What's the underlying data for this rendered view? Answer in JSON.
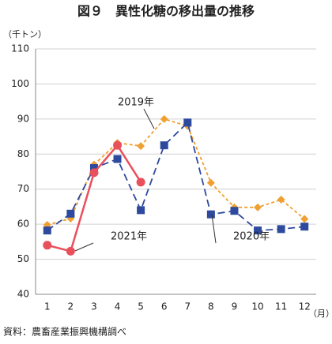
{
  "chart_data": {
    "type": "line",
    "title": "図９　異性化糖の移出量の推移",
    "y_unit": "（千トン）",
    "x_unit": "（月）",
    "source": "資料：農畜産業振興機構調べ",
    "categories": [
      "1",
      "2",
      "3",
      "4",
      "5",
      "6",
      "7",
      "8",
      "9",
      "10",
      "11",
      "12"
    ],
    "series": [
      {
        "name": "2019年",
        "color": "#f0a030",
        "values": [
          59.8,
          61.6,
          77,
          83.2,
          82.3,
          90,
          88,
          71.8,
          64.8,
          64.8,
          67,
          61.5
        ]
      },
      {
        "name": "2020年",
        "color": "#2e4a9e",
        "values": [
          58.2,
          63,
          76,
          78.6,
          64,
          82.5,
          89,
          62.8,
          63.8,
          58.2,
          58.6,
          59.3
        ]
      },
      {
        "name": "2021年",
        "color": "#e8505b",
        "values": [
          54,
          52.3,
          74.7,
          82.5,
          72,
          null,
          null,
          null,
          null,
          null,
          null,
          null
        ]
      }
    ],
    "ylim": [
      40,
      110
    ],
    "yticks": [
      40,
      50,
      60,
      70,
      80,
      90,
      100,
      110
    ],
    "grid": true
  }
}
